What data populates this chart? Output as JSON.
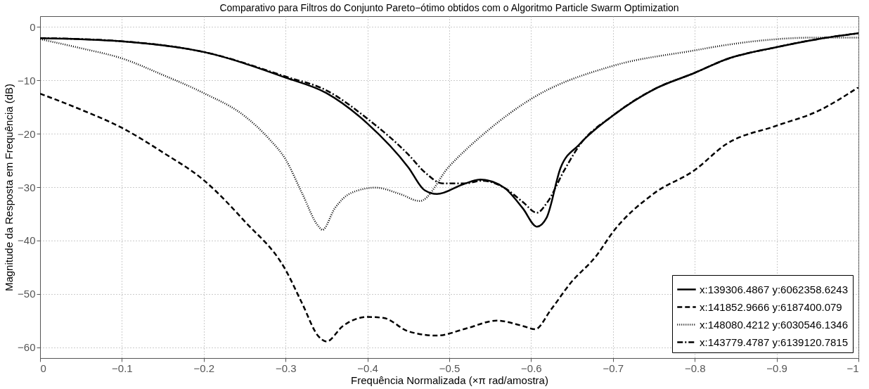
{
  "chart_data": {
    "type": "line",
    "title": "Comparativo para Filtros do Conjunto Pareto−ótimo obtidos com o Algoritmo Particle Swarm Optimization",
    "xlabel": "Frequência Normalizada (×π rad/amostra)",
    "ylabel": "Magnitude da Resposta em Frequência (dB)",
    "xlim": [
      0,
      -1
    ],
    "ylim": [
      -62,
      2
    ],
    "xticks": [
      0,
      {
        "value": -0.1,
        "label": "−0.1"
      },
      {
        "value": -0.2,
        "label": "−0.2"
      },
      {
        "value": -0.3,
        "label": "−0.3"
      },
      {
        "value": -0.4,
        "label": "−0.4"
      },
      {
        "value": -0.5,
        "label": "−0.5"
      },
      {
        "value": -0.6,
        "label": "−0.6"
      },
      {
        "value": -0.7,
        "label": "−0.7"
      },
      {
        "value": -0.8,
        "label": "−0.8"
      },
      {
        "value": -0.9,
        "label": "−0.9"
      },
      {
        "value": -1,
        "label": "−1"
      }
    ],
    "yticks": [
      0,
      {
        "value": -10,
        "label": "−10"
      },
      {
        "value": -20,
        "label": "−20"
      },
      {
        "value": -30,
        "label": "−30"
      },
      {
        "value": -40,
        "label": "−40"
      },
      {
        "value": -50,
        "label": "−50"
      },
      {
        "value": -60,
        "label": "−60"
      }
    ],
    "grid": true,
    "legend": "bottom right",
    "marker": "none",
    "series": [
      {
        "name": "x:139306.4867 y:6062358.6243",
        "color": "#000000",
        "line_style": "solid",
        "x": [
          0,
          -0.1,
          -0.2,
          -0.3,
          -0.35,
          -0.4,
          -0.45,
          -0.47,
          -0.485,
          -0.518,
          -0.538,
          -0.567,
          -0.59,
          -0.607,
          -0.619,
          -0.636,
          -0.659,
          -0.7,
          -0.75,
          -0.8,
          -0.838,
          -0.9,
          -0.95,
          -1
        ],
        "values": [
          -2.1,
          -2.7,
          -4.7,
          -9.5,
          -12.4,
          -18.1,
          -26.3,
          -30.6,
          -31.3,
          -29.4,
          -28.6,
          -30.1,
          -34,
          -37.4,
          -35.7,
          -26.4,
          -22,
          -16.6,
          -11.7,
          -8.6,
          -6.1,
          -3.8,
          -2.3,
          -1.2
        ]
      },
      {
        "name": "x:141852.9666 y:6187400.079",
        "color": "#000000",
        "line_style": "dashed",
        "x": [
          0,
          -0.05,
          -0.1,
          -0.15,
          -0.2,
          -0.25,
          -0.3,
          -0.32,
          -0.34,
          -0.35,
          -0.37,
          -0.4,
          -0.42,
          -0.45,
          -0.485,
          -0.52,
          -0.558,
          -0.59,
          -0.605,
          -0.624,
          -0.648,
          -0.68,
          -0.7,
          -0.749,
          -0.8,
          -0.838,
          -0.9,
          -0.95,
          -1
        ],
        "values": [
          -12.5,
          -15.5,
          -18.9,
          -23.5,
          -28.7,
          -36.4,
          -45.5,
          -51.7,
          -57.9,
          -58.9,
          -56,
          -54.3,
          -54.5,
          -57,
          -57.8,
          -56.5,
          -55,
          -56,
          -56.6,
          -53,
          -48,
          -42.8,
          -38.4,
          -31.3,
          -26.8,
          -22,
          -18.5,
          -15.8,
          -11.3
        ]
      },
      {
        "name": "x:148080.4212 y:6030546.1346",
        "color": "#000000",
        "line_style": "dotted",
        "x": [
          0,
          -0.05,
          -0.1,
          -0.15,
          -0.2,
          -0.25,
          -0.28,
          -0.3,
          -0.32,
          -0.34,
          -0.345,
          -0.36,
          -0.38,
          -0.41,
          -0.44,
          -0.464,
          -0.5,
          -0.544,
          -0.6,
          -0.7,
          -0.8,
          -0.838,
          -0.9,
          -0.95,
          -1
        ],
        "values": [
          -2.3,
          -4,
          -5.9,
          -9,
          -12.4,
          -16.7,
          -21,
          -24.8,
          -31.1,
          -37.3,
          -38,
          -34,
          -31.1,
          -30.1,
          -31.3,
          -32.6,
          -26.1,
          -19.8,
          -13.5,
          -7.3,
          -4.4,
          -3.4,
          -2.3,
          -2,
          -2
        ]
      },
      {
        "name": "x:143779.4787 y:6139120.7815",
        "color": "#000000",
        "line_style": "dashdot",
        "x": [
          0,
          -0.1,
          -0.2,
          -0.3,
          -0.35,
          -0.4,
          -0.45,
          -0.47,
          -0.492,
          -0.52,
          -0.54,
          -0.567,
          -0.59,
          -0.607,
          -0.62,
          -0.64,
          -0.659,
          -0.7,
          -0.75,
          -0.8,
          -0.838,
          -0.9,
          -0.95,
          -1
        ],
        "values": [
          -2.1,
          -2.7,
          -4.7,
          -9.3,
          -11.9,
          -17.2,
          -23.9,
          -27.2,
          -29.3,
          -29.3,
          -28.8,
          -30.1,
          -32.8,
          -34.8,
          -32.8,
          -27,
          -22.2,
          -16.6,
          -11.7,
          -8.6,
          -6.1,
          -3.8,
          -2.3,
          -1.2
        ]
      }
    ]
  }
}
